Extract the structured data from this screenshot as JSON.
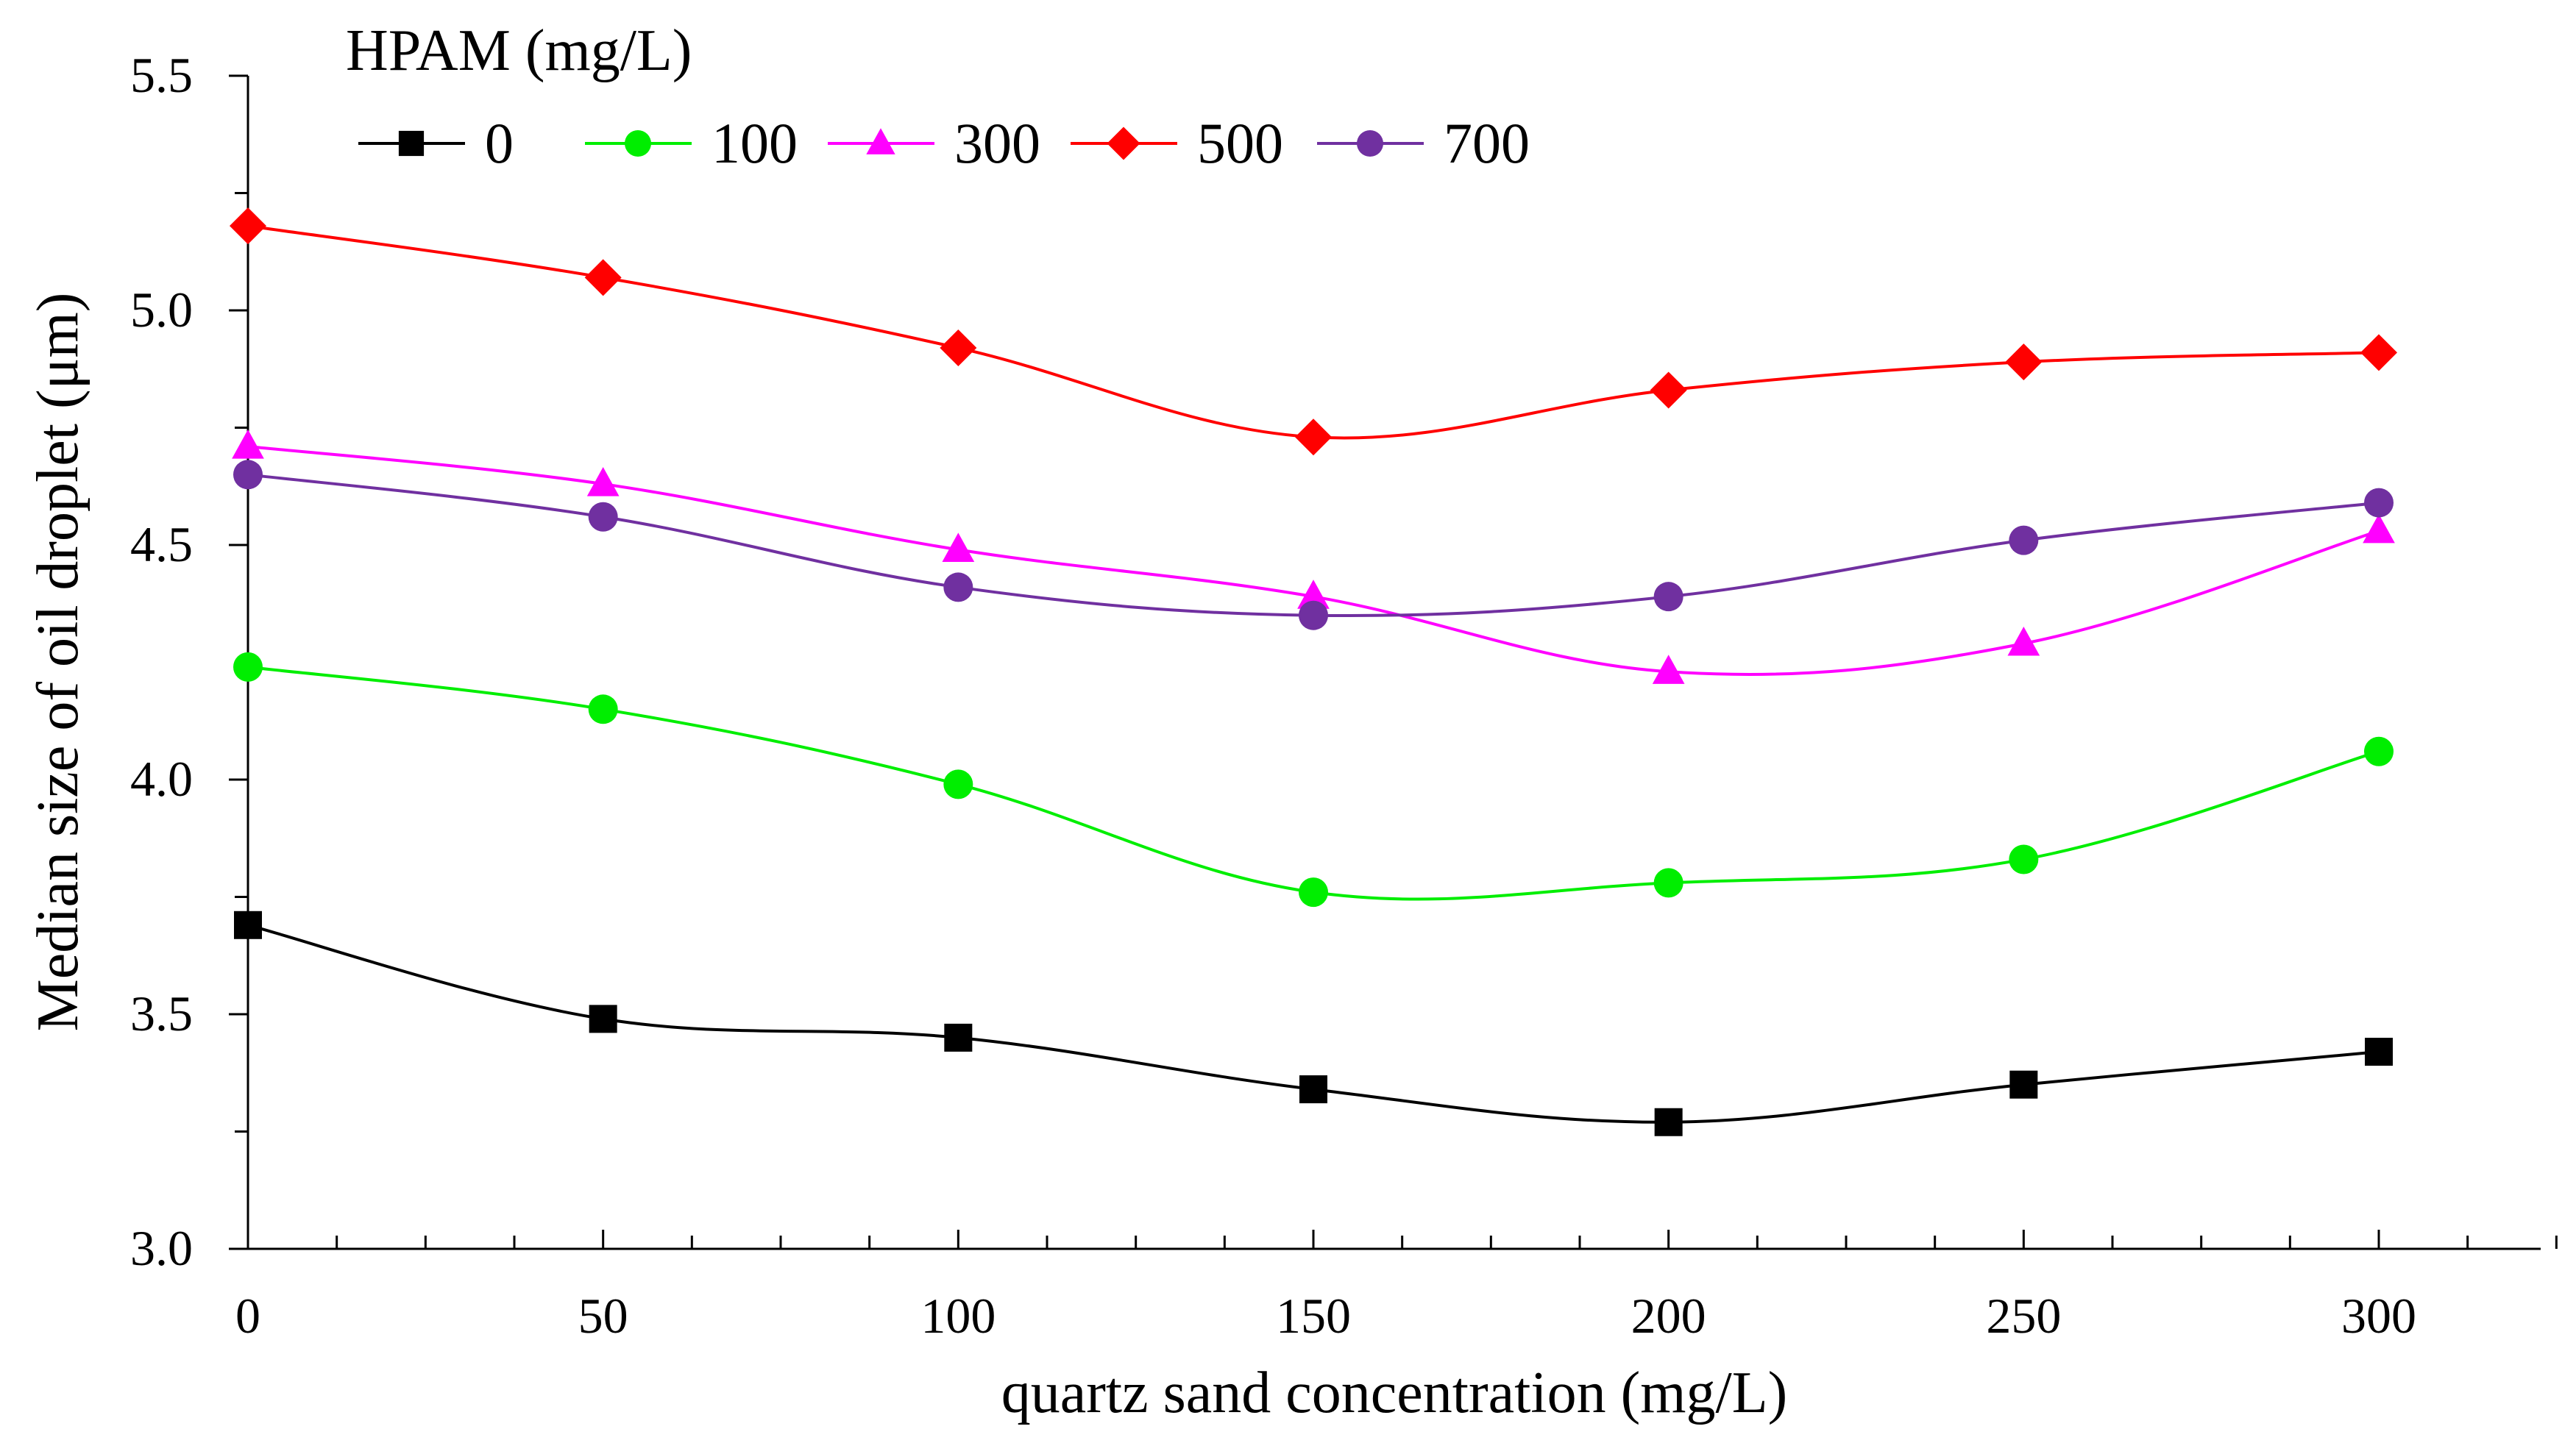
{
  "chart_data": {
    "type": "line",
    "title": "",
    "xlabel": "quartz sand concentration (mg/L)",
    "ylabel": "Median size of oil droplet  (μm)",
    "x": [
      0,
      50,
      100,
      150,
      200,
      250,
      300
    ],
    "xlim": [
      0,
      325
    ],
    "ylim": [
      3.0,
      5.5
    ],
    "x_ticks": [
      "0",
      "50",
      "100",
      "150",
      "200",
      "250",
      "300"
    ],
    "y_ticks": [
      "3.0",
      "3.5",
      "4.0",
      "4.5",
      "5.0",
      "5.5"
    ],
    "grid": false,
    "legend_title": "HPAM (mg/L)",
    "legend_position": "top-left",
    "series": [
      {
        "name": "0",
        "color": "#000000",
        "marker": "square",
        "values": [
          3.69,
          3.49,
          3.45,
          3.34,
          3.27,
          3.35,
          3.42
        ]
      },
      {
        "name": "100",
        "color": "#00ee00",
        "marker": "circle",
        "values": [
          4.24,
          4.15,
          3.99,
          3.76,
          3.78,
          3.83,
          4.06
        ]
      },
      {
        "name": "300",
        "color": "#ff00ff",
        "marker": "triangle",
        "values": [
          4.71,
          4.63,
          4.49,
          4.39,
          4.23,
          4.29,
          4.53
        ]
      },
      {
        "name": "500",
        "color": "#ff0000",
        "marker": "diamond",
        "values": [
          5.18,
          5.07,
          4.92,
          4.73,
          4.83,
          4.89,
          4.91
        ]
      },
      {
        "name": "700",
        "color": "#7030a0",
        "marker": "circle",
        "values": [
          4.65,
          4.56,
          4.41,
          4.35,
          4.39,
          4.51,
          4.59
        ]
      }
    ]
  }
}
